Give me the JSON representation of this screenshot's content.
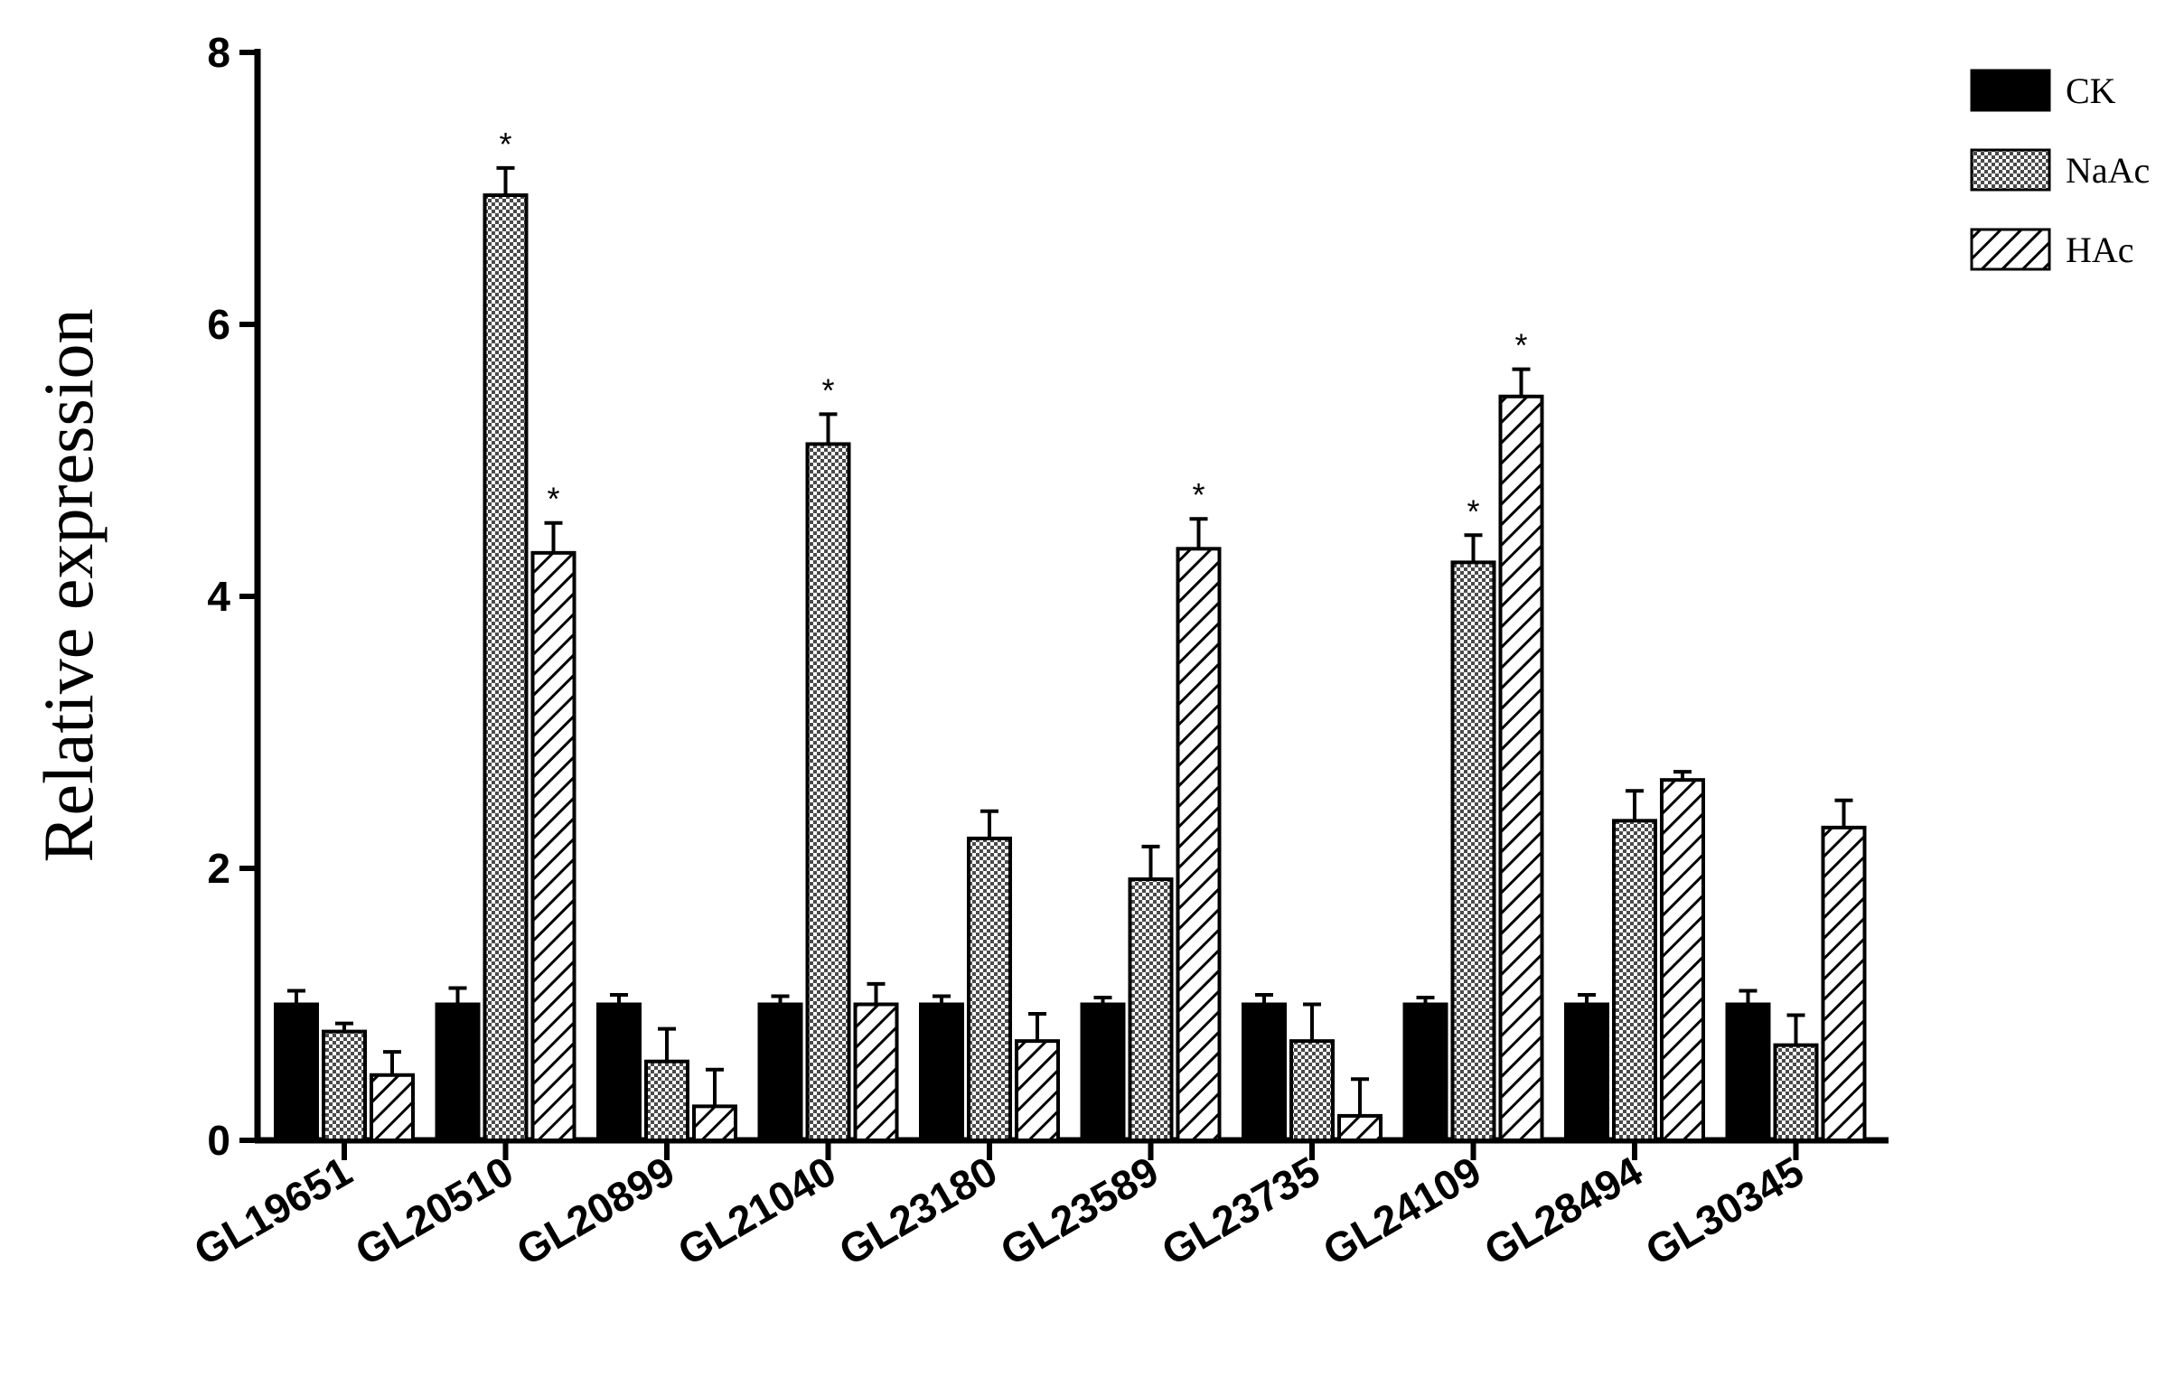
{
  "chart_data": {
    "type": "bar",
    "title": "",
    "xlabel": "",
    "ylabel": "Relative expression",
    "ylim": [
      0,
      8
    ],
    "yticks": [
      "0",
      "2",
      "4",
      "6",
      "8"
    ],
    "legend_position": "top-right",
    "categories": [
      "GL19651",
      "GL20510",
      "GL20899",
      "GL21040",
      "GL23180",
      "GL23589",
      "GL23735",
      "GL24109",
      "GL28494",
      "GL30345"
    ],
    "series": [
      {
        "name": "CK",
        "pattern": "solid",
        "values": [
          1.0,
          1.0,
          1.0,
          1.0,
          1.0,
          1.0,
          1.0,
          1.0,
          1.0,
          1.0
        ],
        "errors": [
          0.1,
          0.12,
          0.07,
          0.06,
          0.06,
          0.05,
          0.07,
          0.05,
          0.07,
          0.1
        ],
        "significant": [
          false,
          false,
          false,
          false,
          false,
          false,
          false,
          false,
          false,
          false
        ]
      },
      {
        "name": "NaAc",
        "pattern": "checker",
        "values": [
          0.8,
          6.95,
          0.58,
          5.12,
          2.22,
          1.92,
          0.73,
          4.25,
          2.35,
          0.7
        ],
        "errors": [
          0.06,
          0.2,
          0.24,
          0.22,
          0.2,
          0.24,
          0.27,
          0.2,
          0.22,
          0.22
        ],
        "significant": [
          false,
          true,
          false,
          true,
          false,
          false,
          false,
          true,
          false,
          false
        ]
      },
      {
        "name": "HAc",
        "pattern": "hatch",
        "values": [
          0.48,
          4.32,
          0.25,
          1.0,
          0.73,
          4.35,
          0.18,
          5.47,
          2.65,
          2.3
        ],
        "errors": [
          0.17,
          0.22,
          0.27,
          0.15,
          0.2,
          0.22,
          0.27,
          0.2,
          0.06,
          0.2
        ],
        "significant": [
          false,
          true,
          false,
          false,
          false,
          true,
          false,
          true,
          false,
          false
        ]
      }
    ],
    "significance_marker": "*",
    "colors": {
      "axis": "#000000",
      "ck_fill": "#000000",
      "naac_fill": "#7a7a7a",
      "hac_stripe": "#000000"
    }
  }
}
